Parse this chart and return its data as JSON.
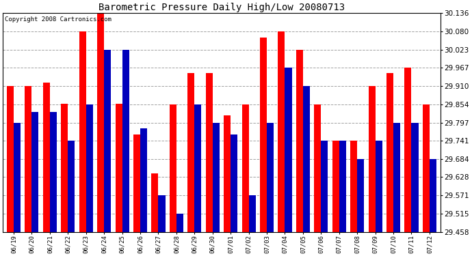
{
  "title": "Barometric Pressure Daily High/Low 20080713",
  "copyright": "Copyright 2008 Cartronics.com",
  "categories": [
    "06/19",
    "06/20",
    "06/21",
    "06/22",
    "06/23",
    "06/24",
    "06/25",
    "06/26",
    "06/27",
    "06/28",
    "06/29",
    "06/30",
    "07/01",
    "07/02",
    "07/03",
    "07/04",
    "07/05",
    "07/06",
    "07/07",
    "07/08",
    "07/09",
    "07/10",
    "07/11",
    "07/12"
  ],
  "highs": [
    29.91,
    29.91,
    29.92,
    29.856,
    30.08,
    30.136,
    29.856,
    29.76,
    29.64,
    29.854,
    29.95,
    29.95,
    29.82,
    29.854,
    30.06,
    30.08,
    30.023,
    29.854,
    29.741,
    29.741,
    29.91,
    29.95,
    29.967,
    29.854
  ],
  "lows": [
    29.797,
    29.83,
    29.83,
    29.741,
    29.854,
    30.023,
    30.023,
    29.78,
    29.571,
    29.515,
    29.854,
    29.797,
    29.76,
    29.571,
    29.797,
    29.967,
    29.91,
    29.741,
    29.741,
    29.684,
    29.741,
    29.797,
    29.797,
    29.684
  ],
  "ylim_min": 29.458,
  "ylim_max": 30.136,
  "yticks": [
    29.458,
    29.515,
    29.571,
    29.628,
    29.684,
    29.741,
    29.797,
    29.854,
    29.91,
    29.967,
    30.023,
    30.08,
    30.136
  ],
  "high_color": "#ff0000",
  "low_color": "#0000bb",
  "bg_color": "#ffffff",
  "grid_color": "#999999",
  "title_fontsize": 10,
  "copyright_fontsize": 6.5,
  "bar_width": 0.38
}
